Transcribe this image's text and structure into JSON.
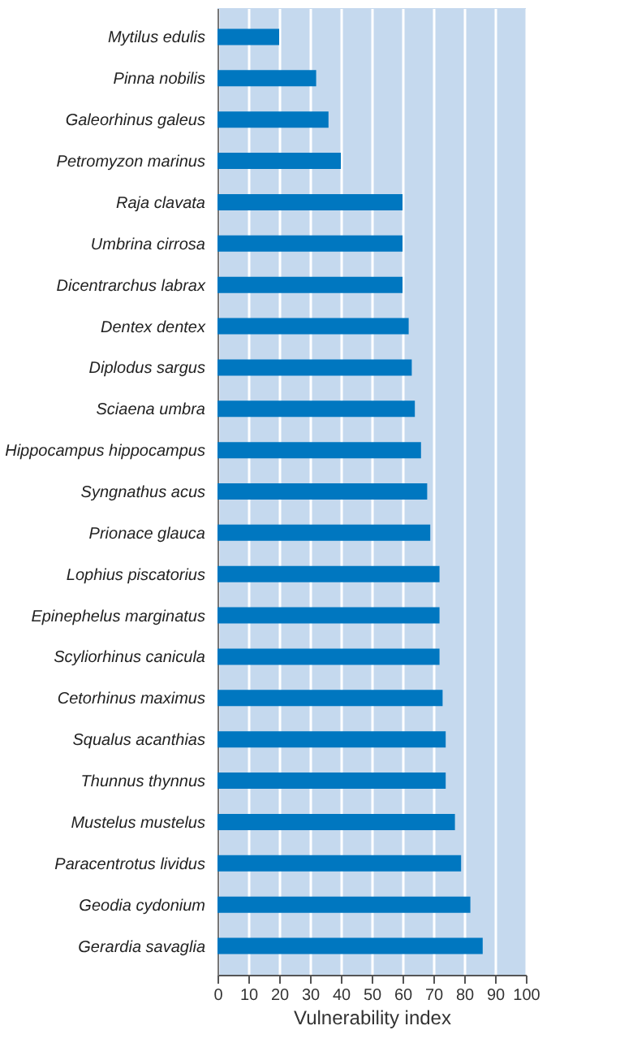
{
  "chart_data": {
    "type": "bar",
    "orientation": "horizontal",
    "xlabel": "Vulnerability index",
    "categories": [
      "Mytilus edulis",
      "Pinna nobilis",
      "Galeorhinus galeus",
      "Petromyzon marinus",
      "Raja clavata",
      "Umbrina cirrosa",
      "Dicentrarchus labrax",
      "Dentex dentex",
      "Diplodus sargus",
      "Sciaena umbra",
      "Hippocampus hippocampus",
      "Syngnathus acus",
      "Prionace glauca",
      "Lophius piscatorius",
      "Epinephelus marginatus",
      "Scyliorhinus canicula",
      "Cetorhinus maximus",
      "Squalus acanthias",
      "Thunnus thynnus",
      "Mustelus mustelus",
      "Paracentrotus lividus",
      "Geodia cydonium",
      "Gerardia savaglia"
    ],
    "values": [
      20,
      32,
      36,
      40,
      60,
      60,
      60,
      62,
      63,
      64,
      66,
      68,
      69,
      72,
      72,
      72,
      73,
      74,
      74,
      77,
      79,
      82,
      86
    ],
    "color": "#0077c0",
    "xlim": [
      0,
      100
    ],
    "xticks": [
      0,
      10,
      20,
      30,
      40,
      50,
      60,
      70,
      80,
      90,
      100
    ],
    "grid": "x"
  }
}
